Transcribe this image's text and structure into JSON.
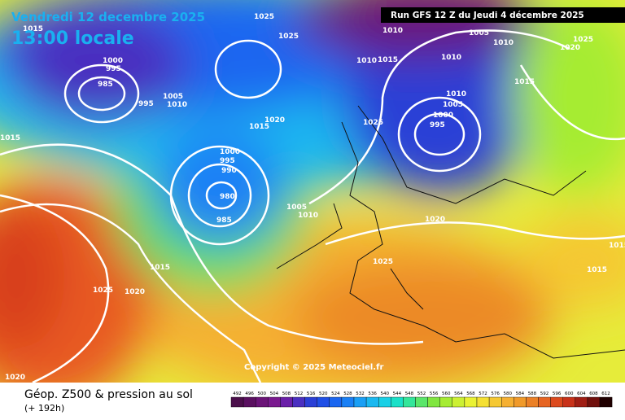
{
  "header": {
    "date": "Vendredi 12 decembre 2025",
    "time": "13:00 locale",
    "run": "Run GFS 12 Z du Jeudi 4 décembre 2025"
  },
  "copyright": "Copyright © 2025 Meteociel.fr",
  "legend": {
    "title": "Géop. Z500 & pression au sol",
    "lead": "(+ 192h)",
    "labels": [
      492,
      496,
      500,
      504,
      508,
      512,
      516,
      520,
      524,
      528,
      532,
      536,
      540,
      544,
      548,
      552,
      556,
      560,
      564,
      568,
      572,
      576,
      580,
      584,
      588,
      592,
      596,
      600,
      604,
      608,
      612
    ],
    "colors": [
      "#4b0f4b",
      "#5a1060",
      "#6b1478",
      "#7a1a8f",
      "#6a1fa8",
      "#4a2fc0",
      "#2a3fd6",
      "#1f4fe6",
      "#1a66f0",
      "#1a80f5",
      "#1a9ff5",
      "#1ab8f0",
      "#1ad0e6",
      "#1ae0c8",
      "#33e69a",
      "#5ae66a",
      "#80e640",
      "#a6ec33",
      "#ccf033",
      "#eaf233",
      "#f5e033",
      "#f5c833",
      "#f5b033",
      "#f09a2a",
      "#eb8026",
      "#e66422",
      "#dc4a1e",
      "#c8321a",
      "#a01e14",
      "#70100c",
      "#200000"
    ]
  },
  "isobars": [
    1015,
    1015,
    1000,
    995,
    985,
    995,
    1005,
    1010,
    1025,
    1025,
    1020,
    1015,
    1000,
    995,
    990,
    980,
    985,
    1005,
    1010,
    1015,
    1025,
    1020,
    1020,
    1025,
    1010,
    1015,
    1010,
    1005,
    1010,
    1010,
    1010,
    1005,
    1000,
    995,
    1020,
    1025,
    1015,
    1025,
    1020,
    1015,
    1015
  ]
}
